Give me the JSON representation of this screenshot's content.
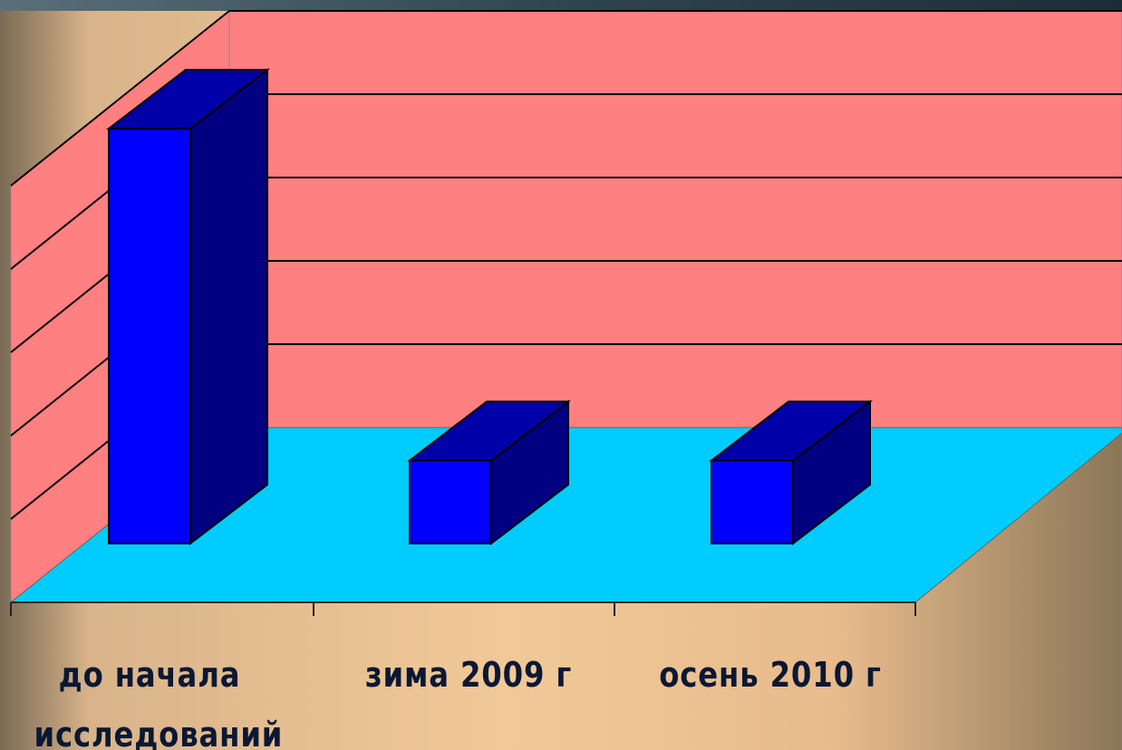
{
  "chart_data": {
    "type": "bar3d",
    "categories": [
      "до начала исследований",
      "зима 2009 г",
      "осень 2010 г"
    ],
    "values": [
      5,
      1,
      1
    ],
    "color": "#0000ff",
    "ylim": [
      0,
      5
    ],
    "yticks": [
      0,
      1,
      2,
      3,
      4,
      5
    ],
    "grid": true
  }
}
